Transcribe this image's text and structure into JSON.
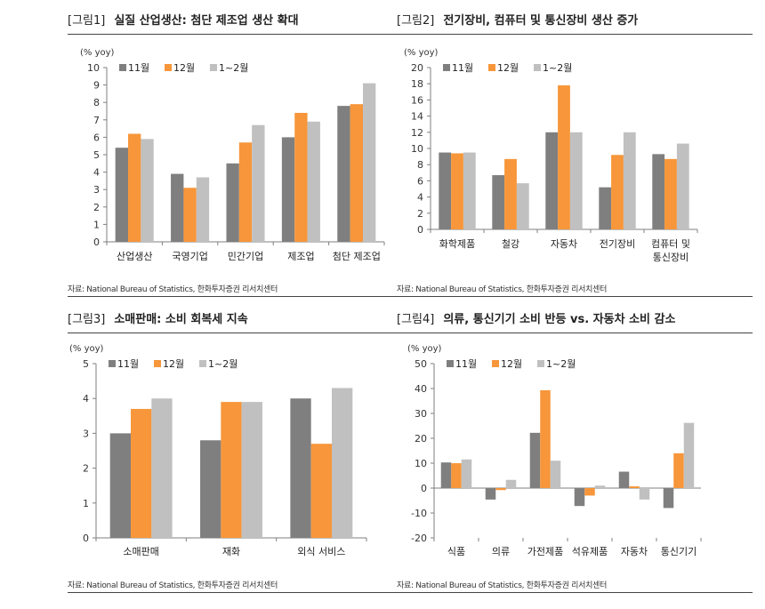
{
  "legend_labels": [
    "11월",
    "12월",
    "1~2월"
  ],
  "colors": {
    "s1": "#7f7f7f",
    "s2": "#f7963a",
    "s3": "#c0c0c0",
    "axis": "#7f7f7f"
  },
  "panels": [
    {
      "tag": "[그림1]",
      "title": "실질 산업생산: 첨단 제조업 생산 확대",
      "source": "자료: National Bureau of Statistics, 한화투자증권 리서치센터",
      "unit": "(% yoy)"
    },
    {
      "tag": "[그림2]",
      "title": "전기장비, 컴퓨터 및 통신장비 생산 증가",
      "source": "자료: National Bureau of Statistics, 한화투자증권 리서치센터",
      "unit": "(% yoy)"
    },
    {
      "tag": "[그림3]",
      "title": "소매판매: 소비 회복세 지속",
      "source": "자료: National Bureau of Statistics, 한화투자증권 리서치센터",
      "unit": "(% yoy)"
    },
    {
      "tag": "[그림4]",
      "title": "의류, 통신기기 소비 반등 vs. 자동차 소비 감소",
      "source": "자료: National Bureau of Statistics, 한화투자증권 리서치센터",
      "unit": "(% yoy)"
    }
  ],
  "chart_data": [
    {
      "type": "bar",
      "categories": [
        "산업생산",
        "국영기업",
        "민간기업",
        "제조업",
        "첨단 제조업"
      ],
      "series": [
        {
          "name": "11월",
          "values": [
            5.4,
            3.9,
            4.5,
            6.0,
            7.8
          ]
        },
        {
          "name": "12월",
          "values": [
            6.2,
            3.1,
            5.7,
            7.4,
            7.9
          ]
        },
        {
          "name": "1~2월",
          "values": [
            5.9,
            3.7,
            6.7,
            6.9,
            9.1
          ]
        }
      ],
      "ylim": [
        0,
        10
      ],
      "yticks": [
        0,
        1,
        2,
        3,
        4,
        5,
        6,
        7,
        8,
        9,
        10
      ],
      "ylabel": "(% yoy)",
      "legend": "top-left"
    },
    {
      "type": "bar",
      "categories": [
        [
          "화학제품"
        ],
        [
          "철강"
        ],
        [
          "자동차"
        ],
        [
          "전기장비"
        ],
        [
          "컴퓨터 및",
          "통신장비"
        ]
      ],
      "series": [
        {
          "name": "11월",
          "values": [
            9.5,
            6.7,
            12.0,
            5.2,
            9.3
          ]
        },
        {
          "name": "12월",
          "values": [
            9.4,
            8.7,
            17.8,
            9.2,
            8.7
          ]
        },
        {
          "name": "1~2월",
          "values": [
            9.5,
            5.7,
            12.0,
            12.0,
            10.6
          ]
        }
      ],
      "ylim": [
        0,
        20
      ],
      "yticks": [
        0,
        2,
        4,
        6,
        8,
        10,
        12,
        14,
        16,
        18,
        20
      ],
      "ylabel": "(% yoy)",
      "legend": "top-left"
    },
    {
      "type": "bar",
      "categories": [
        "소매판매",
        "재화",
        "외식 서비스"
      ],
      "series": [
        {
          "name": "11월",
          "values": [
            3.0,
            2.8,
            4.0
          ]
        },
        {
          "name": "12월",
          "values": [
            3.7,
            3.9,
            2.7
          ]
        },
        {
          "name": "1~2월",
          "values": [
            4.0,
            3.9,
            4.3
          ]
        }
      ],
      "ylim": [
        0,
        5
      ],
      "yticks": [
        0,
        1,
        2,
        3,
        4,
        5
      ],
      "ylabel": "(% yoy)",
      "legend": "top-left"
    },
    {
      "type": "bar",
      "categories": [
        "식품",
        "의류",
        "가전제품",
        "석유제품",
        "자동차",
        "통신기기"
      ],
      "series": [
        {
          "name": "11월",
          "values": [
            10.3,
            -4.6,
            22.2,
            -7.2,
            6.6,
            -8.0
          ]
        },
        {
          "name": "12월",
          "values": [
            10.0,
            -0.8,
            39.3,
            -3.0,
            0.7,
            14.0
          ]
        },
        {
          "name": "1~2월",
          "values": [
            11.5,
            3.3,
            11.0,
            1.0,
            -4.6,
            26.2
          ]
        }
      ],
      "ylim": [
        -20,
        50
      ],
      "yticks": [
        -20,
        -10,
        0,
        10,
        20,
        30,
        40,
        50
      ],
      "ylabel": "(% yoy)",
      "legend": "top-left"
    }
  ]
}
